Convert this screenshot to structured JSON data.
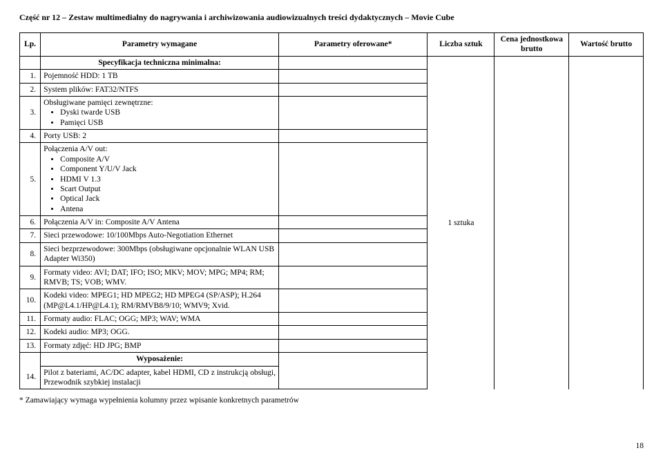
{
  "title": "Część nr 12 – Zestaw multimedialny do nagrywania i archiwizowania audiowizualnych treści dydaktycznych – Movie Cube",
  "headers": {
    "lp": "Lp.",
    "param": "Parametry wymagane",
    "offer": "Parametry oferowane*",
    "qty": "Liczba sztuk",
    "unit": "Cena jednostkowa brutto",
    "total": "Wartość brutto"
  },
  "spec_heading": "Specyfikacja techniczna minimalna:",
  "qty_value": "1 sztuka",
  "rows": {
    "r1": {
      "lp": "1.",
      "text": "Pojemność HDD:  1 TB"
    },
    "r2": {
      "lp": "2.",
      "text": "System plików: FAT32/NTFS"
    },
    "r3": {
      "lp": "3.",
      "lead": "Obsługiwane pamięci zewnętrzne:",
      "b1": "Dyski twarde USB",
      "b2": "Pamięci USB"
    },
    "r4": {
      "lp": "4.",
      "text": "Porty USB: 2"
    },
    "r5": {
      "lp": "5.",
      "lead": "Połączenia A/V out:",
      "b1": "Composite A/V",
      "b2": "Component Y/U/V Jack",
      "b3": "HDMI V 1.3",
      "b4": "Scart Output",
      "b5": "Optical Jack",
      "b6": "Antena"
    },
    "r6": {
      "lp": "6.",
      "text": "Połączenia A/V in: Composite A/V Antena"
    },
    "r7": {
      "lp": "7.",
      "text": "Sieci przewodowe: 10/100Mbps Auto-Negotiation Ethernet"
    },
    "r8": {
      "lp": "8.",
      "text": "Sieci bezprzewodowe: 300Mbps (obsługiwane opcjonalnie WLAN USB Adapter Wi350)"
    },
    "r9": {
      "lp": "9.",
      "text": "Formaty video: AVI; DAT; IFO; ISO; MKV; MOV; MPG; MP4; RM; RMVB; TS; VOB; WMV."
    },
    "r10": {
      "lp": "10.",
      "text": "Kodeki video: MPEG1; HD MPEG2; HD MPEG4 (SP/ASP); H.264 (MP@L4.1/HP@L4.1); RM/RMVB8/9/10; WMV9; Xvid."
    },
    "r11": {
      "lp": "11.",
      "text": "Formaty audio: FLAC; OGG; MP3; WAV; WMA"
    },
    "r12": {
      "lp": "12.",
      "text": "Kodeki audio: MP3; OGG."
    },
    "r13": {
      "lp": "13.",
      "text": "Formaty zdjęć: HD JPG; BMP"
    },
    "r14": {
      "lp": "14.",
      "heading": "Wyposażenie:",
      "text": "Pilot z bateriami, AC/DC adapter, kabel HDMI, CD z instrukcją obsługi, Przewodnik szybkiej instalacji"
    }
  },
  "footnote": "* Zamawiający wymaga wypełnienia kolumny przez wpisanie konkretnych parametrów",
  "page_number": "18"
}
